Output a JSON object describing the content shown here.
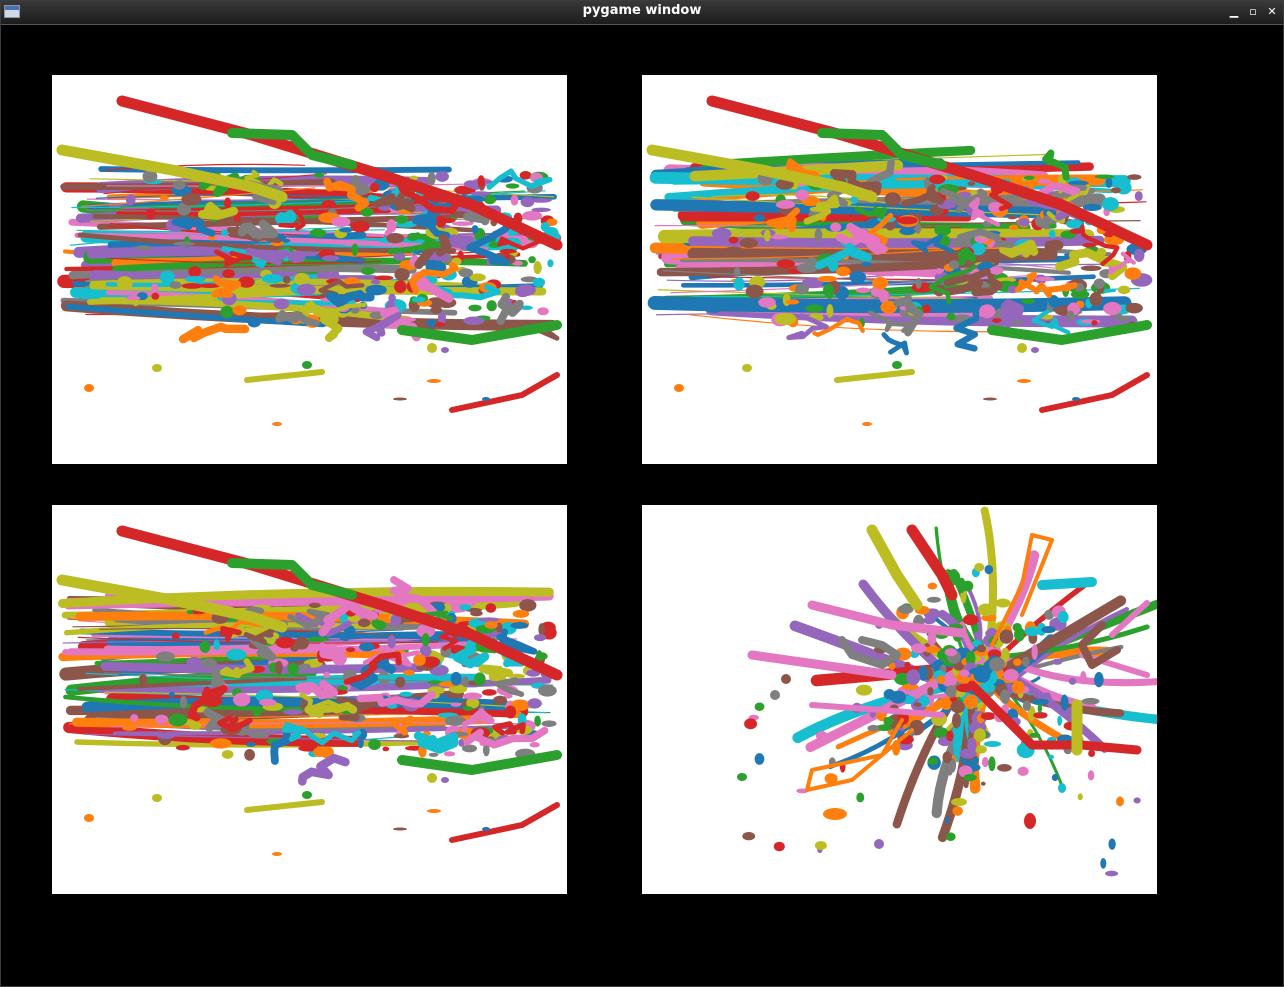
{
  "window": {
    "title": "pygame window",
    "buttons": [
      "minimize-icon",
      "maximize-icon",
      "close-icon"
    ]
  },
  "palette": [
    "#1f77b4",
    "#ff7f0e",
    "#2ca02c",
    "#d62728",
    "#9467bd",
    "#8c564b",
    "#e377c2",
    "#7f7f7f",
    "#bcbd22",
    "#17becf"
  ],
  "panels": [
    {
      "name": "panel-top-left",
      "view": "side"
    },
    {
      "name": "panel-top-right",
      "view": "side"
    },
    {
      "name": "panel-bottom-left",
      "view": "side"
    },
    {
      "name": "panel-bottom-right",
      "view": "front"
    }
  ]
}
